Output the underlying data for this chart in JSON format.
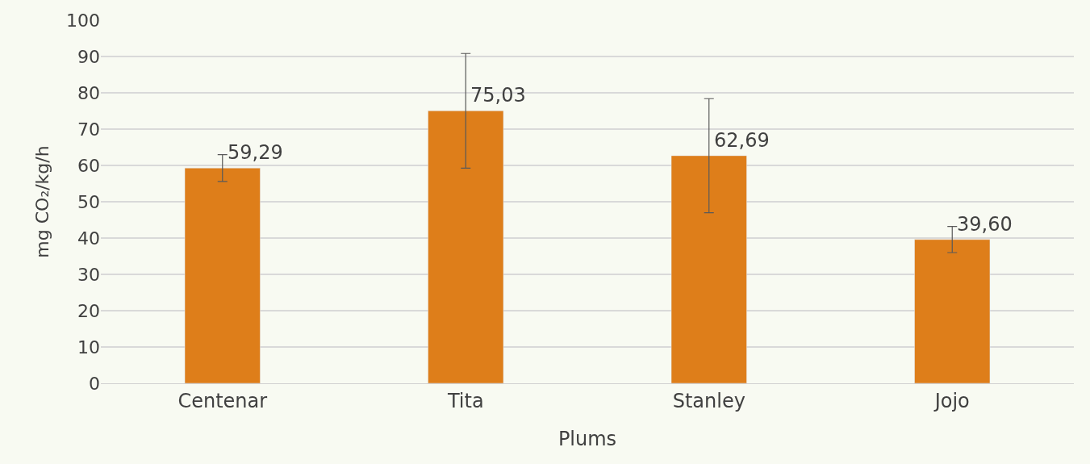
{
  "chart_data": {
    "type": "bar",
    "xlabel": "Plums",
    "ylabel": "mg CO₂/kg/h",
    "categories": [
      "Centenar",
      "Tita",
      "Stanley",
      "Jojo"
    ],
    "values": [
      59.29,
      75.03,
      62.69,
      39.6
    ],
    "value_labels": [
      "59,29",
      "75,03",
      "62,69",
      "39,60"
    ],
    "errors": [
      3.7,
      15.8,
      15.7,
      3.6
    ],
    "color": "#de7e1a",
    "ylim": [
      0,
      100
    ],
    "yticks": [
      0,
      10,
      20,
      30,
      40,
      50,
      60,
      70,
      80,
      90,
      100
    ],
    "grid": "y",
    "legend": false
  }
}
